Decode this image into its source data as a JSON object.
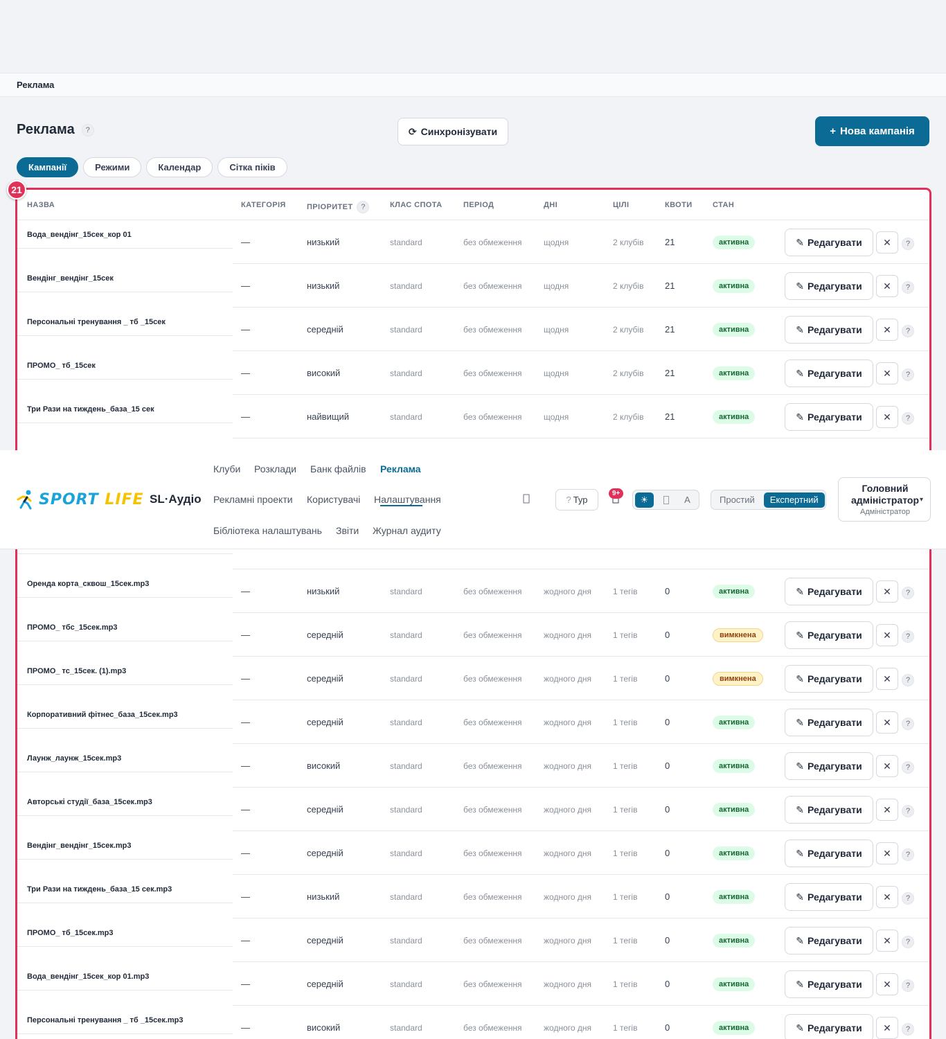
{
  "breadcrumb": "Реклама",
  "page": {
    "title": "Реклама",
    "help": "?",
    "sync_label": "Синхронізувати",
    "sync_icon": "⟳",
    "new_label": "Нова кампанія",
    "new_icon": "+"
  },
  "tabs": [
    "Кампанії",
    "Режими",
    "Календар",
    "Сітка піків"
  ],
  "count_badge": "21",
  "columns": {
    "name": "НАЗВА",
    "category": "КАТЕГОРІЯ",
    "priority": "ПРІОРИТЕТ",
    "spot_class": "КЛАС СПОТА",
    "period": "ПЕРІОД",
    "days": "ДНІ",
    "targets": "ЦІЛІ",
    "quotas": "КВОТИ",
    "state": "СТАН"
  },
  "edit_label": "Редагувати",
  "edit_icon": "✎",
  "delete_icon": "✕",
  "help_icon": "?",
  "rows_top": [
    {
      "name": "Вода_вендінг_15сек_кор 01",
      "category": "—",
      "priority": "низький",
      "spot_class": "standard",
      "period": "без обмеження",
      "days": "щодня",
      "targets": "2 клубів",
      "quotas": "21",
      "state": "активна",
      "state_kind": "on"
    },
    {
      "name": "Вендінг_вендінг_15сек",
      "category": "—",
      "priority": "низький",
      "spot_class": "standard",
      "period": "без обмеження",
      "days": "щодня",
      "targets": "2 клубів",
      "quotas": "21",
      "state": "активна",
      "state_kind": "on"
    },
    {
      "name": "Персональні тренування _ тб _15сек",
      "category": "—",
      "priority": "середній",
      "spot_class": "standard",
      "period": "без обмеження",
      "days": "щодня",
      "targets": "2 клубів",
      "quotas": "21",
      "state": "активна",
      "state_kind": "on"
    },
    {
      "name": "ПРОМО_ тб_15сек",
      "category": "—",
      "priority": "високий",
      "spot_class": "standard",
      "period": "без обмеження",
      "days": "щодня",
      "targets": "2 клубів",
      "quotas": "21",
      "state": "активна",
      "state_kind": "on"
    },
    {
      "name": "Три Рази на тиждень_база_15 сек",
      "category": "—",
      "priority": "найвищий",
      "spot_class": "standard",
      "period": "без обмеження",
      "days": "щодня",
      "targets": "2 клубів",
      "quotas": "21",
      "state": "активна",
      "state_kind": "on"
    }
  ],
  "rows_bottom": [
    {
      "name": "Оренда корта_сквош_15сек.mp3",
      "category": "—",
      "priority": "низький",
      "spot_class": "standard",
      "period": "без обмеження",
      "days": "жодного дня",
      "targets": "1 тегів",
      "quotas": "0",
      "state": "активна",
      "state_kind": "on"
    },
    {
      "name": "ПРОМО_ тбс_15сек.mp3",
      "category": "—",
      "priority": "середній",
      "spot_class": "standard",
      "period": "без обмеження",
      "days": "жодного дня",
      "targets": "1 тегів",
      "quotas": "0",
      "state": "вимкнена",
      "state_kind": "off"
    },
    {
      "name": "ПРОМО_ тс_15сек. (1).mp3",
      "category": "—",
      "priority": "середній",
      "spot_class": "standard",
      "period": "без обмеження",
      "days": "жодного дня",
      "targets": "1 тегів",
      "quotas": "0",
      "state": "вимкнена",
      "state_kind": "off"
    },
    {
      "name": "Корпоративний фітнес_база_15сек.mp3",
      "category": "—",
      "priority": "середній",
      "spot_class": "standard",
      "period": "без обмеження",
      "days": "жодного дня",
      "targets": "1 тегів",
      "quotas": "0",
      "state": "активна",
      "state_kind": "on"
    },
    {
      "name": "Лаунж_лаунж_15сек.mp3",
      "category": "—",
      "priority": "високий",
      "spot_class": "standard",
      "period": "без обмеження",
      "days": "жодного дня",
      "targets": "1 тегів",
      "quotas": "0",
      "state": "активна",
      "state_kind": "on"
    },
    {
      "name": "Авторські студії_база_15сек.mp3",
      "category": "—",
      "priority": "середній",
      "spot_class": "standard",
      "period": "без обмеження",
      "days": "жодного дня",
      "targets": "1 тегів",
      "quotas": "0",
      "state": "активна",
      "state_kind": "on"
    },
    {
      "name": "Вендінг_вендінг_15сек.mp3",
      "category": "—",
      "priority": "середній",
      "spot_class": "standard",
      "period": "без обмеження",
      "days": "жодного дня",
      "targets": "1 тегів",
      "quotas": "0",
      "state": "активна",
      "state_kind": "on"
    },
    {
      "name": "Три Рази на тиждень_база_15 сек.mp3",
      "category": "—",
      "priority": "низький",
      "spot_class": "standard",
      "period": "без обмеження",
      "days": "жодного дня",
      "targets": "1 тегів",
      "quotas": "0",
      "state": "активна",
      "state_kind": "on"
    },
    {
      "name": "ПРОМО_ тб_15сек.mp3",
      "category": "—",
      "priority": "середній",
      "spot_class": "standard",
      "period": "без обмеження",
      "days": "жодного дня",
      "targets": "1 тегів",
      "quotas": "0",
      "state": "активна",
      "state_kind": "on"
    },
    {
      "name": "Вода_вендінг_15сек_кор 01.mp3",
      "category": "—",
      "priority": "середній",
      "spot_class": "standard",
      "period": "без обмеження",
      "days": "жодного дня",
      "targets": "1 тегів",
      "quotas": "0",
      "state": "активна",
      "state_kind": "on"
    },
    {
      "name": "Персональні тренування _ тб _15сек.mp3",
      "category": "—",
      "priority": "високий",
      "spot_class": "standard",
      "period": "без обмеження",
      "days": "жодного дня",
      "targets": "1 тегів",
      "quotas": "0",
      "state": "активна",
      "state_kind": "on"
    }
  ],
  "navbar": {
    "logo_sport": "SPORT",
    "logo_life": "LIFE",
    "app_name": "SL·Аудіо",
    "nav_row1": [
      "Клуби",
      "Розклади",
      "Банк файлів",
      "Реклама"
    ],
    "nav_row2": [
      "Рекламні проекти",
      "Користувачі",
      "Налаштування"
    ],
    "nav_row3": [
      "Бібліотека налаштувань",
      "Звіти",
      "Журнал аудиту"
    ],
    "active_nav": "Реклама",
    "tour_label": "Тур",
    "tour_icon": "?",
    "notif_badge": "9+",
    "theme_options": [
      "☀",
      "",
      "A"
    ],
    "mode_options": [
      "Простий",
      "Експертний"
    ],
    "active_mode": "Експертний",
    "user_name": "Головний адміністратор",
    "user_role": "Адміністратор",
    "user_caret": "▾"
  },
  "colors": {
    "accent": "#0b6b94",
    "highlight": "#e1315a",
    "status_on_bg": "#dcfce7",
    "status_off_bg": "#fef3c7"
  }
}
